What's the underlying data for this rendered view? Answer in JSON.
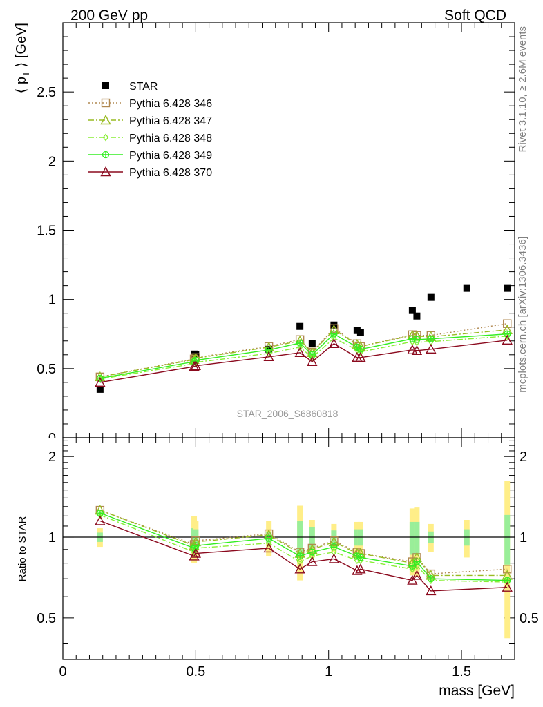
{
  "header": {
    "left": "200 GeV pp",
    "right": "Soft QCD",
    "side_top": "Rivet 3.1.10, ≥ 2.6M events",
    "side_bottom": "mcplots.cern.ch [arXiv:1306.3436]",
    "watermark": "STAR_2006_S6860818"
  },
  "colors": {
    "star": "#000000",
    "p346": "#b08850",
    "p347": "#99bb22",
    "p348": "#88ee33",
    "p349": "#33ee22",
    "p370": "#8b0a1e",
    "band_stat": "#99ee99",
    "band_syst": "#ffee88"
  },
  "chart_data": [
    {
      "type": "scatter",
      "panel": "main",
      "ylabel": "⟨ p_T ⟩ [GeV]",
      "xlim": [
        0,
        1.7
      ],
      "ylim": [
        0,
        3.0
      ],
      "yticks": [
        "0.5",
        "1",
        "1.5",
        "2",
        "2.5"
      ],
      "legend_position": "top-left",
      "series": [
        {
          "name": "STAR",
          "style": "points",
          "x": [
            0.14,
            0.494,
            0.5,
            0.775,
            0.892,
            0.938,
            1.02,
            1.107,
            1.12,
            1.315,
            1.332,
            1.385,
            1.52,
            1.672
          ],
          "y": [
            0.35,
            0.605,
            0.6,
            0.64,
            0.805,
            0.68,
            0.815,
            0.775,
            0.76,
            0.92,
            0.88,
            1.015,
            1.08,
            1.08
          ]
        },
        {
          "name": "Pythia 6.428 346",
          "style": "dotted-square",
          "x": [
            0.14,
            0.494,
            0.5,
            0.775,
            0.892,
            0.938,
            1.02,
            1.107,
            1.12,
            1.315,
            1.332,
            1.385,
            1.672
          ],
          "y": [
            0.44,
            0.57,
            0.58,
            0.66,
            0.71,
            0.62,
            0.79,
            0.68,
            0.66,
            0.745,
            0.74,
            0.74,
            0.825
          ]
        },
        {
          "name": "Pythia 6.428 347",
          "style": "dashdot-triangle",
          "x": [
            0.14,
            0.494,
            0.5,
            0.775,
            0.892,
            0.938,
            1.02,
            1.107,
            1.12,
            1.315,
            1.332,
            1.385,
            1.672
          ],
          "y": [
            0.44,
            0.565,
            0.575,
            0.655,
            0.7,
            0.615,
            0.78,
            0.675,
            0.66,
            0.74,
            0.735,
            0.73,
            0.78
          ]
        },
        {
          "name": "Pythia 6.428 348",
          "style": "dashdot-diamond",
          "x": [
            0.14,
            0.494,
            0.5,
            0.775,
            0.892,
            0.938,
            1.02,
            1.107,
            1.12,
            1.315,
            1.332,
            1.385,
            1.672
          ],
          "y": [
            0.425,
            0.535,
            0.545,
            0.61,
            0.655,
            0.58,
            0.72,
            0.635,
            0.62,
            0.695,
            0.69,
            0.695,
            0.735
          ]
        },
        {
          "name": "Pythia 6.428 349",
          "style": "solid-cross",
          "x": [
            0.14,
            0.494,
            0.5,
            0.775,
            0.892,
            0.938,
            1.02,
            1.107,
            1.12,
            1.315,
            1.332,
            1.385,
            1.672
          ],
          "y": [
            0.43,
            0.55,
            0.56,
            0.635,
            0.685,
            0.6,
            0.75,
            0.655,
            0.64,
            0.715,
            0.71,
            0.715,
            0.75
          ]
        },
        {
          "name": "Pythia 6.428 370",
          "style": "solid-triangle",
          "x": [
            0.14,
            0.494,
            0.5,
            0.775,
            0.892,
            0.938,
            1.02,
            1.107,
            1.12,
            1.315,
            1.332,
            1.385,
            1.672
          ],
          "y": [
            0.4,
            0.515,
            0.52,
            0.585,
            0.615,
            0.55,
            0.68,
            0.58,
            0.58,
            0.635,
            0.63,
            0.64,
            0.705
          ]
        }
      ]
    },
    {
      "type": "line",
      "panel": "ratio",
      "ylabel": "Ratio to STAR",
      "xlabel": "mass [GeV]",
      "xlim": [
        0,
        1.7
      ],
      "ylim": [
        0.35,
        2.35
      ],
      "yscale": "log",
      "xticks": [
        "0",
        "0.5",
        "1",
        "1.5"
      ],
      "yticks": [
        "0.5",
        "1",
        "2"
      ],
      "bands": {
        "x": [
          0.14,
          0.494,
          0.5,
          0.775,
          0.892,
          0.938,
          1.02,
          1.107,
          1.12,
          1.315,
          1.332,
          1.385,
          1.52,
          1.672
        ],
        "stat_lo": [
          0.96,
          0.92,
          0.93,
          0.95,
          0.85,
          0.91,
          0.94,
          0.93,
          0.93,
          0.86,
          0.86,
          0.95,
          0.93,
          0.79
        ],
        "stat_hi": [
          1.04,
          1.08,
          1.07,
          1.05,
          1.15,
          1.09,
          1.06,
          1.07,
          1.07,
          1.14,
          1.14,
          1.05,
          1.07,
          1.21
        ],
        "syst_lo": [
          0.92,
          0.8,
          0.85,
          0.85,
          0.69,
          0.84,
          0.88,
          0.86,
          0.86,
          0.72,
          0.71,
          0.88,
          0.84,
          0.42
        ],
        "syst_hi": [
          1.08,
          1.2,
          1.15,
          1.15,
          1.31,
          1.16,
          1.12,
          1.14,
          1.14,
          1.28,
          1.29,
          1.12,
          1.16,
          1.62
        ]
      },
      "series": [
        {
          "name": "Pythia 6.428 346",
          "style": "dotted-square",
          "y": [
            1.26,
            0.94,
            0.97,
            1.03,
            0.88,
            0.91,
            0.97,
            0.88,
            0.87,
            0.81,
            0.84,
            0.73,
            0.76
          ]
        },
        {
          "name": "Pythia 6.428 347",
          "style": "dashdot-triangle",
          "y": [
            1.26,
            0.93,
            0.96,
            1.02,
            0.87,
            0.9,
            0.96,
            0.87,
            0.87,
            0.8,
            0.84,
            0.72,
            0.72
          ]
        },
        {
          "name": "Pythia 6.428 348",
          "style": "dashdot-diamond",
          "y": [
            1.21,
            0.88,
            0.91,
            0.95,
            0.81,
            0.85,
            0.88,
            0.82,
            0.82,
            0.76,
            0.78,
            0.69,
            0.68
          ]
        },
        {
          "name": "Pythia 6.428 349",
          "style": "solid-cross",
          "y": [
            1.23,
            0.91,
            0.93,
            0.99,
            0.85,
            0.88,
            0.92,
            0.85,
            0.84,
            0.78,
            0.81,
            0.7,
            0.69
          ]
        },
        {
          "name": "Pythia 6.428 370",
          "style": "solid-triangle",
          "y": [
            1.15,
            0.85,
            0.87,
            0.91,
            0.76,
            0.81,
            0.83,
            0.75,
            0.76,
            0.69,
            0.72,
            0.63,
            0.65
          ]
        }
      ]
    }
  ]
}
